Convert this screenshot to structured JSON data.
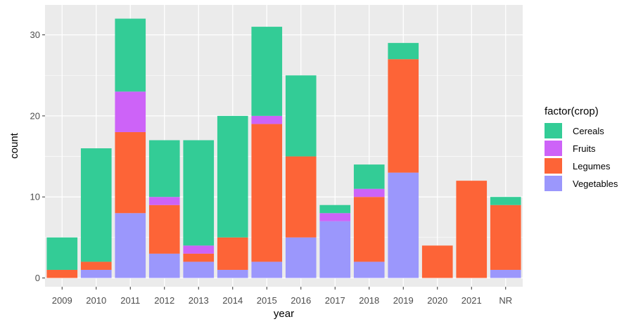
{
  "chart_data": {
    "type": "bar",
    "stacked": true,
    "xlabel": "year",
    "ylabel": "count",
    "ylim": [
      0,
      33
    ],
    "yticks": [
      0,
      10,
      20,
      30
    ],
    "grid": true,
    "legend": {
      "title": "factor(crop)",
      "placement": "right"
    },
    "categories": [
      "2009",
      "2010",
      "2011",
      "2012",
      "2013",
      "2014",
      "2015",
      "2016",
      "2017",
      "2018",
      "2019",
      "2020",
      "2021",
      "NR"
    ],
    "series": [
      {
        "name": "Vegetables",
        "color": "#9b97fc",
        "values": [
          0,
          1,
          8,
          3,
          2,
          1,
          2,
          5,
          7,
          2,
          13,
          0,
          0,
          1
        ]
      },
      {
        "name": "Legumes",
        "color": "#fd6437",
        "values": [
          1,
          1,
          10,
          6,
          1,
          4,
          17,
          10,
          0,
          8,
          14,
          4,
          12,
          8
        ]
      },
      {
        "name": "Fruits",
        "color": "#cd63f8",
        "values": [
          0,
          0,
          5,
          1,
          1,
          0,
          1,
          0,
          1,
          1,
          0,
          0,
          0,
          0
        ]
      },
      {
        "name": "Cereals",
        "color": "#33cc96",
        "values": [
          4,
          14,
          9,
          7,
          13,
          15,
          11,
          10,
          1,
          3,
          2,
          0,
          0,
          1
        ]
      }
    ],
    "legend_order": [
      "Cereals",
      "Fruits",
      "Legumes",
      "Vegetables"
    ]
  },
  "colors": {
    "panel": "#ebebeb",
    "grid": "#ffffff",
    "text": "#4d4d4d"
  }
}
